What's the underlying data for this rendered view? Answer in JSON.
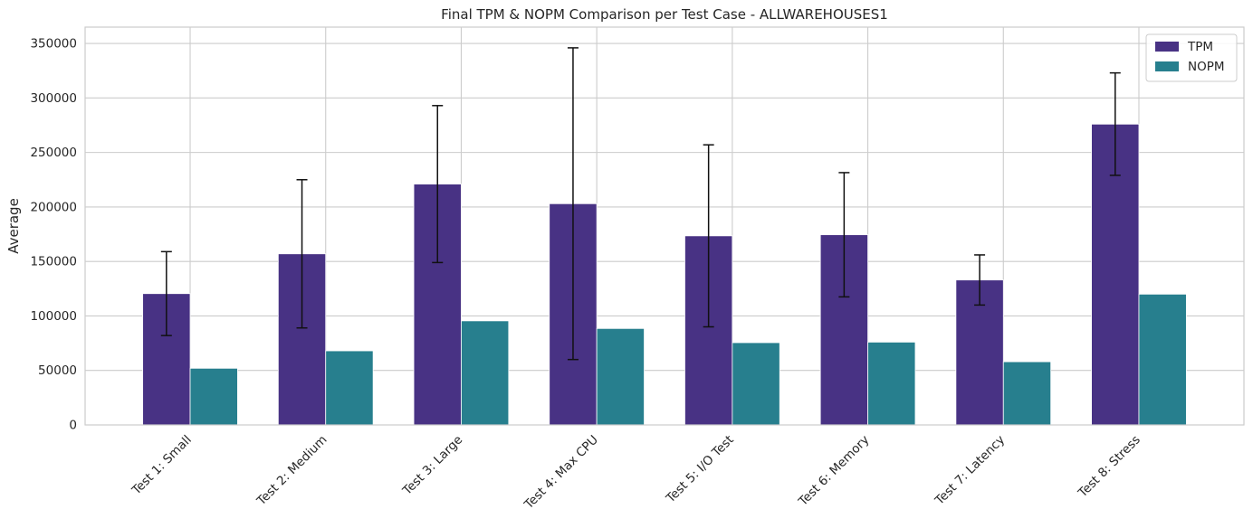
{
  "chart_data": {
    "type": "bar",
    "title": "Final TPM & NOPM Comparison per Test Case - ALLWAREHOUSES1",
    "xlabel": "",
    "ylabel": "Average",
    "ylim": [
      0,
      365000
    ],
    "yticks": [
      0,
      50000,
      100000,
      150000,
      200000,
      250000,
      300000,
      350000
    ],
    "categories": [
      "Test 1: Small",
      "Test 2: Medium",
      "Test 3: Large",
      "Test 4: Max CPU",
      "Test 5: I/O Test",
      "Test 6: Memory",
      "Test 7: Latency",
      "Test 8: Stress"
    ],
    "series": [
      {
        "name": "TPM",
        "color": "#483284",
        "values": [
          120500,
          157000,
          221000,
          203000,
          173500,
          174500,
          133000,
          276000
        ],
        "error": [
          38500,
          68000,
          72000,
          143000,
          83500,
          57000,
          23000,
          47000
        ]
      },
      {
        "name": "NOPM",
        "color": "#277F8E",
        "values": [
          52000,
          68000,
          95500,
          88500,
          75500,
          76000,
          58000,
          120000
        ]
      }
    ],
    "grid": true,
    "legend_position": "top-right"
  }
}
